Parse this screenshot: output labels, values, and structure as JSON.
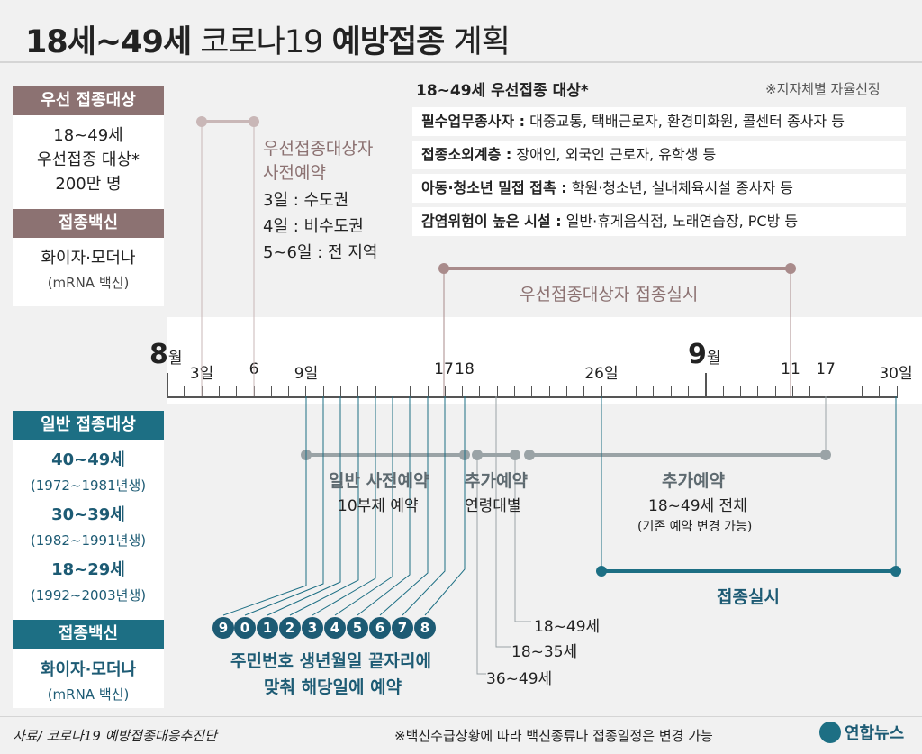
{
  "title": {
    "part1": "18세~49세",
    "part2": "코로나19",
    "part3": "예방접종",
    "part4": "계획"
  },
  "priority": {
    "target_header": "우선 접종대상",
    "target_lines": [
      "18~49세",
      "우선접종 대상*",
      "200만 명"
    ],
    "vaccine_header": "접종백신",
    "vaccine_name": "화이자·모더나",
    "vaccine_type": "(mRNA 백신)"
  },
  "priority_table": {
    "title": "18~49세 우선접종 대상*",
    "note": "※지자체별 자율선정",
    "rows": [
      {
        "label": "필수업무종사자 :",
        "text": " 대중교통, 택배근로자, 환경미화원, 콜센터 종사자 등"
      },
      {
        "label": "접종소외계층 :",
        "text": " 장애인, 외국인 근로자, 유학생 등"
      },
      {
        "label": "아동·청소년 밀접 접촉 :",
        "text": " 학원·청소년, 실내체육시설 종사자 등"
      },
      {
        "label": "감염위험이 높은 시설 :",
        "text": " 일반·휴게음식점, 노래연습장, PC방 등"
      }
    ]
  },
  "priority_reservation": {
    "title1": "우선접종대상자",
    "title2": "사전예약",
    "lines": [
      "3일 : 수도권",
      "4일 : 비수도권",
      "5~6일 : 전 지역"
    ]
  },
  "priority_vaccination": "우선접종대상자 접종실시",
  "timeline": {
    "aug_num": "8",
    "aug_unit": "월",
    "sep_num": "9",
    "sep_unit": "월",
    "labels": [
      "3일",
      "6",
      "9일",
      "17",
      "18",
      "26일",
      "11",
      "17",
      "30일"
    ]
  },
  "general": {
    "target_header": "일반 접종대상",
    "groups": [
      {
        "age": "40~49세",
        "years": "(1972~1981년생)"
      },
      {
        "age": "30~39세",
        "years": "(1982~1991년생)"
      },
      {
        "age": "18~29세",
        "years": "(1992~2003년생)"
      }
    ],
    "vaccine_header": "접종백신",
    "vaccine_name": "화이자·모더나",
    "vaccine_type": "(mRNA 백신)"
  },
  "general_reservation": {
    "title": "일반 사전예약",
    "sub": "10부제 예약"
  },
  "extra_reservation1": {
    "title": "추가예약",
    "sub": "연령대별"
  },
  "extra_reservation2": {
    "title": "추가예약",
    "sub": "18~49세 전체",
    "note": "(기존 예약 변경 가능)"
  },
  "general_vaccination": "접종실시",
  "digits": [
    "9",
    "0",
    "1",
    "2",
    "3",
    "4",
    "5",
    "6",
    "7",
    "8"
  ],
  "digit_caption": [
    "주민번호 생년월일 끝자리에",
    "맞춰 해당일에 예약"
  ],
  "age_labels": [
    "18~49세",
    "18~35세",
    "36~49세"
  ],
  "footer": {
    "source": "자료/ 코로나19 예방접종대응추진단",
    "note": "※백신수급상황에 따라 백신종류나 접종일정은 변경 가능",
    "logo": "연합뉴스"
  },
  "colors": {
    "teal": "#1d6f84",
    "brown": "#8c7272",
    "brown_line": "#a98b8b",
    "gray_line": "#9aa3a6"
  }
}
